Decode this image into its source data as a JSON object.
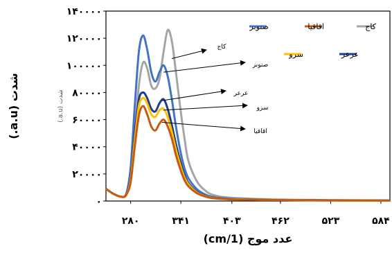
{
  "chart_data": {
    "type": "line",
    "ylabel": "شدت (a.u.)",
    "inner_ylabel": "شدت (a.u.)",
    "xlabel": "عدد موج (1/cm)",
    "xticks": [
      {
        "value": 280,
        "label": "۲۸۰"
      },
      {
        "value": 341,
        "label": "۳۴۱"
      },
      {
        "value": 403,
        "label": "۴۰۳"
      },
      {
        "value": 462,
        "label": "۴۶۲"
      },
      {
        "value": 523,
        "label": "۵۲۳"
      },
      {
        "value": 584,
        "label": "۵۸۴"
      }
    ],
    "yticks": [
      {
        "value": 0,
        "label": "۰"
      },
      {
        "value": 20000,
        "label": "۲۰۰۰۰"
      },
      {
        "value": 40000,
        "label": "۴۰۰۰۰"
      },
      {
        "value": 60000,
        "label": "۶۰۰۰۰"
      },
      {
        "value": 80000,
        "label": "۸۰۰۰۰"
      },
      {
        "value": 100000,
        "label": "۱۰۰۰۰۰"
      },
      {
        "value": 120000,
        "label": "۱۲۰۰۰۰"
      },
      {
        "value": 140000,
        "label": "۱۴۰۰۰۰"
      }
    ],
    "xlim": [
      250,
      595
    ],
    "ylim": [
      0,
      140000
    ],
    "legend_position": "top-right",
    "grid": false,
    "series": [
      {
        "name": "کاج",
        "color": "#a5a5a5",
        "points": [
          [
            250,
            9000
          ],
          [
            260,
            5000
          ],
          [
            270,
            3000
          ],
          [
            275,
            6000
          ],
          [
            280,
            20000
          ],
          [
            285,
            50000
          ],
          [
            290,
            85000
          ],
          [
            295,
            102000
          ],
          [
            300,
            98000
          ],
          [
            305,
            85000
          ],
          [
            310,
            83000
          ],
          [
            315,
            90000
          ],
          [
            320,
            110000
          ],
          [
            325,
            126000
          ],
          [
            330,
            118000
          ],
          [
            335,
            95000
          ],
          [
            340,
            70000
          ],
          [
            345,
            48000
          ],
          [
            350,
            30000
          ],
          [
            360,
            15000
          ],
          [
            370,
            8000
          ],
          [
            380,
            4500
          ],
          [
            400,
            2500
          ],
          [
            450,
            1200
          ],
          [
            500,
            800
          ],
          [
            550,
            600
          ],
          [
            595,
            500
          ]
        ]
      },
      {
        "name": "صنوبر",
        "color": "#4472c4",
        "points": [
          [
            250,
            9000
          ],
          [
            260,
            5000
          ],
          [
            270,
            3000
          ],
          [
            275,
            6000
          ],
          [
            280,
            25000
          ],
          [
            285,
            70000
          ],
          [
            290,
            110000
          ],
          [
            295,
            122000
          ],
          [
            300,
            112000
          ],
          [
            305,
            95000
          ],
          [
            310,
            88000
          ],
          [
            315,
            95000
          ],
          [
            320,
            100000
          ],
          [
            325,
            92000
          ],
          [
            330,
            75000
          ],
          [
            335,
            55000
          ],
          [
            340,
            38000
          ],
          [
            345,
            25000
          ],
          [
            350,
            17000
          ],
          [
            360,
            9000
          ],
          [
            370,
            5000
          ],
          [
            380,
            3000
          ],
          [
            400,
            1800
          ],
          [
            450,
            1000
          ],
          [
            500,
            700
          ],
          [
            550,
            500
          ],
          [
            595,
            400
          ]
        ]
      },
      {
        "name": "عرعر",
        "color": "#1f3d8f",
        "points": [
          [
            250,
            9000
          ],
          [
            260,
            5000
          ],
          [
            270,
            3000
          ],
          [
            275,
            5000
          ],
          [
            280,
            18000
          ],
          [
            285,
            50000
          ],
          [
            290,
            75000
          ],
          [
            295,
            80000
          ],
          [
            300,
            76000
          ],
          [
            305,
            68000
          ],
          [
            310,
            66000
          ],
          [
            315,
            72000
          ],
          [
            320,
            75000
          ],
          [
            325,
            68000
          ],
          [
            330,
            56000
          ],
          [
            335,
            42000
          ],
          [
            340,
            30000
          ],
          [
            345,
            20000
          ],
          [
            350,
            13500
          ],
          [
            360,
            7000
          ],
          [
            370,
            4000
          ],
          [
            380,
            2500
          ],
          [
            400,
            1500
          ],
          [
            450,
            900
          ],
          [
            500,
            600
          ],
          [
            550,
            450
          ],
          [
            595,
            350
          ]
        ]
      },
      {
        "name": "سرو",
        "color": "#ffc000",
        "points": [
          [
            250,
            9000
          ],
          [
            260,
            5000
          ],
          [
            270,
            3000
          ],
          [
            275,
            5000
          ],
          [
            280,
            16000
          ],
          [
            285,
            45000
          ],
          [
            290,
            70000
          ],
          [
            295,
            76000
          ],
          [
            300,
            72000
          ],
          [
            305,
            64000
          ],
          [
            310,
            62000
          ],
          [
            315,
            67000
          ],
          [
            320,
            68000
          ],
          [
            325,
            62000
          ],
          [
            330,
            51000
          ],
          [
            335,
            38000
          ],
          [
            340,
            27000
          ],
          [
            345,
            18000
          ],
          [
            350,
            12500
          ],
          [
            360,
            6500
          ],
          [
            370,
            3700
          ],
          [
            380,
            2300
          ],
          [
            400,
            1400
          ],
          [
            450,
            850
          ],
          [
            500,
            550
          ],
          [
            550,
            420
          ],
          [
            595,
            330
          ]
        ]
      },
      {
        "name": "اقاقیا",
        "color": "#c55a11",
        "points": [
          [
            250,
            9000
          ],
          [
            260,
            5000
          ],
          [
            270,
            3000
          ],
          [
            275,
            5000
          ],
          [
            280,
            14000
          ],
          [
            285,
            40000
          ],
          [
            290,
            63000
          ],
          [
            295,
            70000
          ],
          [
            300,
            64000
          ],
          [
            305,
            55000
          ],
          [
            310,
            52000
          ],
          [
            315,
            57000
          ],
          [
            320,
            60000
          ],
          [
            325,
            55000
          ],
          [
            330,
            46000
          ],
          [
            335,
            34000
          ],
          [
            340,
            24000
          ],
          [
            345,
            16000
          ],
          [
            350,
            11000
          ],
          [
            360,
            6000
          ],
          [
            370,
            3400
          ],
          [
            380,
            2100
          ],
          [
            400,
            1300
          ],
          [
            450,
            800
          ],
          [
            500,
            500
          ],
          [
            550,
            400
          ],
          [
            595,
            300
          ]
        ]
      }
    ],
    "legend_order": [
      "کاج",
      "اقاقیا",
      "صنوبر",
      "عرعر",
      "سرو"
    ],
    "annotations": [
      {
        "text": "کاج",
        "tip": [
          330,
          105000
        ]
      },
      {
        "text": "صنوبر",
        "tip": [
          320,
          95000
        ]
      },
      {
        "text": "عرعر",
        "tip": [
          318,
          74000
        ]
      },
      {
        "text": "سرو",
        "tip": [
          320,
          67000
        ]
      },
      {
        "text": "اقاقیا",
        "tip": [
          318,
          58000
        ]
      }
    ]
  }
}
